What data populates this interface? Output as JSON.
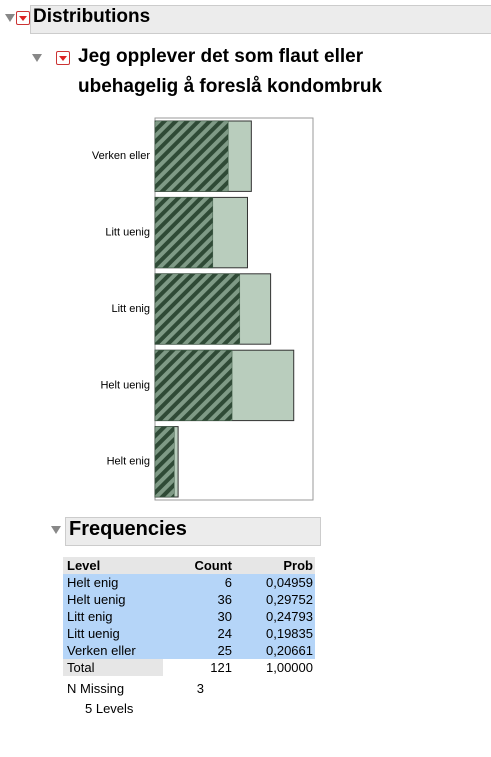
{
  "header": {
    "title": "Distributions"
  },
  "section": {
    "title_lines": [
      "Jeg opplever det som flaut eller",
      "ubehagelig å foreslå kondombruk"
    ]
  },
  "chart_data": {
    "type": "bar",
    "orientation": "horizontal",
    "categories": [
      "Verken eller",
      "Litt uenig",
      "Litt enig",
      "Helt uenig",
      "Helt enig"
    ],
    "values": [
      25,
      24,
      30,
      36,
      6
    ],
    "selected_values": [
      19,
      15,
      22,
      20,
      5
    ],
    "color": "#b9cdbd",
    "selected_color": "#3d5c45",
    "xlim": [
      0,
      41
    ]
  },
  "frequencies": {
    "title": "Frequencies",
    "columns": [
      "Level",
      "Count",
      "Prob"
    ],
    "rows": [
      [
        "Helt enig",
        "6",
        "0,04959"
      ],
      [
        "Helt uenig",
        "36",
        "0,29752"
      ],
      [
        "Litt enig",
        "30",
        "0,24793"
      ],
      [
        "Litt uenig",
        "24",
        "0,19835"
      ],
      [
        "Verken eller",
        "25",
        "0,20661"
      ]
    ],
    "total": [
      "Total",
      "121",
      "1,00000"
    ],
    "missing": [
      "N Missing",
      "3"
    ],
    "levels": "5 Levels"
  }
}
